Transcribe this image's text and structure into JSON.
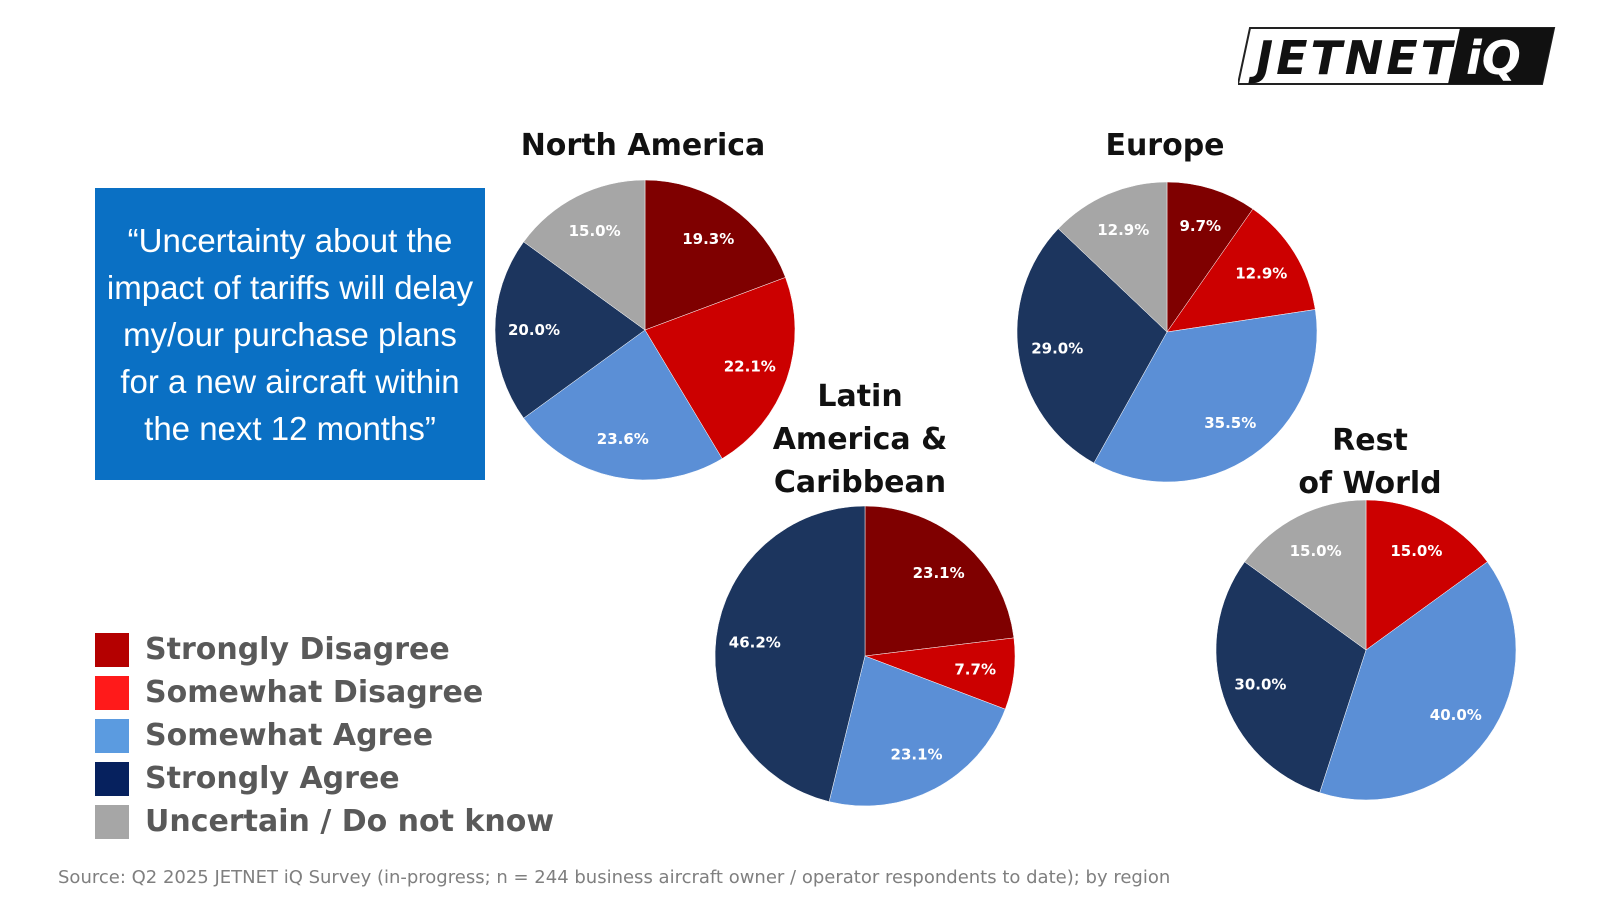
{
  "logo_text": "JETNET iQ",
  "quote": "“Uncertainty about the impact of tariffs will delay my/our purchase plans for a new aircraft within the next 12 months”",
  "source": "Source: Q2 2025 JETNET iQ Survey (in-progress; n = 244 business aircraft owner / operator respondents to date); by region",
  "chart_data": {
    "type": "pie",
    "legend_position": "bottom-left",
    "categories": [
      "Strongly Disagree",
      "Somewhat Disagree",
      "Somewhat Agree",
      "Strongly Agree",
      "Uncertain / Do not know"
    ],
    "colors": [
      "#7f0000",
      "#cc0000",
      "#5b8fd6",
      "#1c355e",
      "#a6a6a6"
    ],
    "legend_colors": [
      "#b40000",
      "#ff1a1a",
      "#5b9be0",
      "#06215e",
      "#a6a6a6"
    ],
    "charts": [
      {
        "title": "North America",
        "title_lines": [
          "North America"
        ],
        "values": [
          19.3,
          22.1,
          23.6,
          20.0,
          15.0
        ],
        "labels": [
          "19.3%",
          "22.1%",
          "23.6%",
          "20.0%",
          "15.0%"
        ]
      },
      {
        "title": "Europe",
        "title_lines": [
          "Europe"
        ],
        "values": [
          9.7,
          12.9,
          35.5,
          29.0,
          12.9
        ],
        "labels": [
          "9.7%",
          "12.9%",
          "35.5%",
          "29.0%",
          "12.9%"
        ]
      },
      {
        "title": "Latin America & Caribbean",
        "title_lines": [
          "Latin",
          "America &",
          "Caribbean"
        ],
        "values": [
          23.1,
          7.7,
          23.1,
          46.2,
          0
        ],
        "labels": [
          "23.1%",
          "7.7%",
          "23.1%",
          "46.2%",
          ""
        ]
      },
      {
        "title": "Rest of World",
        "title_lines": [
          "Rest",
          "of World"
        ],
        "values": [
          0,
          15.0,
          40.0,
          30.0,
          15.0
        ],
        "labels": [
          "",
          "15.0%",
          "40.0%",
          "30.0%",
          "15.0%"
        ]
      }
    ]
  }
}
